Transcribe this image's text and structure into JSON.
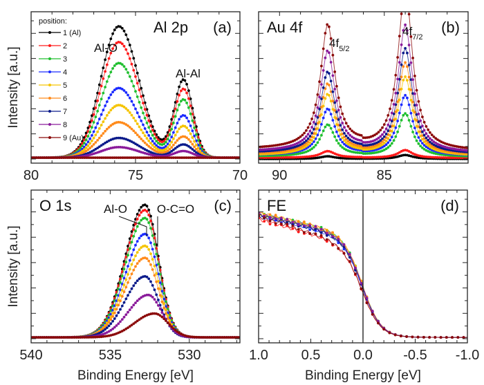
{
  "chart_data": [
    {
      "panel": "a",
      "type": "line",
      "title": "Al 2p",
      "panel_label": "(a)",
      "xlabel": "",
      "ylabel": "Intensity [a.u.]",
      "xlim": [
        80,
        70
      ],
      "xticks": [
        80,
        75,
        70
      ],
      "ylim": [
        0,
        1.1
      ],
      "legend": {
        "title": "position:",
        "placement": "top-left"
      },
      "annotations": [
        {
          "text": "Al-O",
          "x": 75.8
        },
        {
          "text": "Al-Al",
          "x": 72.7
        }
      ],
      "peaks": [
        {
          "center": 75.8,
          "width": 0.95,
          "shape": "gauss"
        },
        {
          "center": 72.7,
          "width": 0.45,
          "shape": "gauss"
        }
      ],
      "series": [
        {
          "name": "1 (Al)",
          "color": "#000000",
          "amplitudes": [
            1.0,
            0.59
          ]
        },
        {
          "name": "2",
          "color": "#ff1a1a",
          "amplitudes": [
            0.88,
            0.52
          ]
        },
        {
          "name": "3",
          "color": "#1fbf2f",
          "amplitudes": [
            0.72,
            0.44
          ]
        },
        {
          "name": "4",
          "color": "#1a2aff",
          "amplitudes": [
            0.53,
            0.32
          ]
        },
        {
          "name": "5",
          "color": "#f5c400",
          "amplitudes": [
            0.4,
            0.24
          ]
        },
        {
          "name": "6",
          "color": "#ff8a1a",
          "amplitudes": [
            0.27,
            0.16
          ]
        },
        {
          "name": "7",
          "color": "#0a1a8a",
          "amplitudes": [
            0.15,
            0.1
          ]
        },
        {
          "name": "8",
          "color": "#8a1a9a",
          "amplitudes": [
            0.08,
            0.05
          ]
        },
        {
          "name": "9 (Au)",
          "color": "#8b0a0a",
          "amplitudes": [
            0.0,
            0.0
          ]
        }
      ]
    },
    {
      "panel": "b",
      "type": "line",
      "title": "Au 4f",
      "panel_label": "(b)",
      "xlabel": "",
      "ylabel": "",
      "xlim": [
        91,
        81
      ],
      "xticks": [
        90,
        85
      ],
      "ylim": [
        0,
        1.1
      ],
      "annotations": [
        {
          "text": "4f",
          "sub": "5/2",
          "x": 87.7
        },
        {
          "text": "4f",
          "sub": "7/2",
          "x": 84.0
        }
      ],
      "peaks": [
        {
          "center": 87.7,
          "width": 0.42,
          "shape": "lorentz"
        },
        {
          "center": 84.0,
          "width": 0.42,
          "shape": "lorentz"
        }
      ],
      "series": [
        {
          "name": "1 (Al)",
          "color": "#000000",
          "amplitudes": [
            0.02,
            0.03
          ]
        },
        {
          "name": "2",
          "color": "#ff1a1a",
          "amplitudes": [
            0.05,
            0.06
          ]
        },
        {
          "name": "3",
          "color": "#1fbf2f",
          "amplitudes": [
            0.24,
            0.33
          ]
        },
        {
          "name": "4",
          "color": "#1a2aff",
          "amplitudes": [
            0.35,
            0.46
          ]
        },
        {
          "name": "5",
          "color": "#f5c400",
          "amplitudes": [
            0.46,
            0.6
          ]
        },
        {
          "name": "6",
          "color": "#ff8a1a",
          "amplitudes": [
            0.53,
            0.7
          ]
        },
        {
          "name": "7",
          "color": "#0a1a8a",
          "amplitudes": [
            0.61,
            0.8
          ]
        },
        {
          "name": "8",
          "color": "#8a1a9a",
          "amplitudes": [
            0.76,
            0.97
          ]
        },
        {
          "name": "9 (Au)",
          "color": "#8b0a0a",
          "amplitudes": [
            0.94,
            1.23
          ]
        }
      ],
      "baselines": [
        0.0,
        0.01,
        0.02,
        0.03,
        0.03,
        0.04,
        0.05,
        0.06,
        0.08
      ]
    },
    {
      "panel": "c",
      "type": "line",
      "title": "O 1s",
      "panel_label": "(c)",
      "xlabel": "Binding Energy [eV]",
      "ylabel": "Intensity [a.u.]",
      "xlim": [
        540,
        526.8
      ],
      "xticks": [
        540,
        535,
        530
      ],
      "ylim": [
        0,
        1.1
      ],
      "annotations": [
        {
          "text": "Al-O",
          "x": 532.8
        },
        {
          "text": "O-C=O",
          "x": 532.2
        }
      ],
      "peaks": [
        {
          "center": 532.8,
          "width": 1.1,
          "shape": "gauss"
        }
      ],
      "series": [
        {
          "name": "1 (Al)",
          "color": "#000000",
          "amplitudes": [
            1.0
          ],
          "center": 532.8
        },
        {
          "name": "2",
          "color": "#ff1a1a",
          "amplitudes": [
            0.96
          ],
          "center": 532.8
        },
        {
          "name": "3",
          "color": "#1fbf2f",
          "amplitudes": [
            0.9
          ],
          "center": 532.8
        },
        {
          "name": "4",
          "color": "#1a2aff",
          "amplitudes": [
            0.78
          ],
          "center": 532.8
        },
        {
          "name": "5",
          "color": "#f5c400",
          "amplitudes": [
            0.69
          ],
          "center": 532.8
        },
        {
          "name": "6",
          "color": "#ff8a1a",
          "amplitudes": [
            0.6
          ],
          "center": 532.8
        },
        {
          "name": "7",
          "color": "#0a1a8a",
          "amplitudes": [
            0.46
          ],
          "center": 532.8
        },
        {
          "name": "8",
          "color": "#8a1a9a",
          "amplitudes": [
            0.32
          ],
          "center": 532.6
        },
        {
          "name": "9 (Au)",
          "color": "#8b0a0a",
          "amplitudes": [
            0.18
          ],
          "center": 532.2
        }
      ]
    },
    {
      "panel": "d",
      "type": "line",
      "title": "FE",
      "panel_label": "(d)",
      "xlabel": "Binding Energy [eV]",
      "ylabel": "",
      "xlim": [
        1.0,
        -1.0
      ],
      "xticks": [
        1.0,
        0.5,
        0.0,
        -0.5,
        -1.0
      ],
      "xtick_labels": [
        "1.0",
        "0.5",
        "0.0",
        "-0.5",
        "-1.0"
      ],
      "ylim": [
        0,
        1.1
      ],
      "vline": 0.0,
      "fermi_edge": {
        "ef": 0.0,
        "kT": 0.09
      },
      "series": [
        {
          "name": "1 (Al)",
          "color": "#000000",
          "plateau": 0.92,
          "slope": 0.18
        },
        {
          "name": "2",
          "color": "#ff1a1a",
          "plateau": 0.89,
          "slope": 0.22
        },
        {
          "name": "3",
          "color": "#1fbf2f",
          "plateau": 0.93,
          "slope": 0.17
        },
        {
          "name": "4",
          "color": "#1a2aff",
          "plateau": 0.92,
          "slope": 0.19
        },
        {
          "name": "5",
          "color": "#f5c400",
          "plateau": 0.93,
          "slope": 0.17
        },
        {
          "name": "6",
          "color": "#ff8a1a",
          "plateau": 0.94,
          "slope": 0.18
        },
        {
          "name": "7",
          "color": "#0a1a8a",
          "plateau": 0.92,
          "slope": 0.19
        },
        {
          "name": "8",
          "color": "#8a1a9a",
          "plateau": 0.93,
          "slope": 0.18
        },
        {
          "name": "9 (Au)",
          "color": "#8b0a0a",
          "plateau": 0.91,
          "slope": 0.24
        }
      ]
    }
  ]
}
